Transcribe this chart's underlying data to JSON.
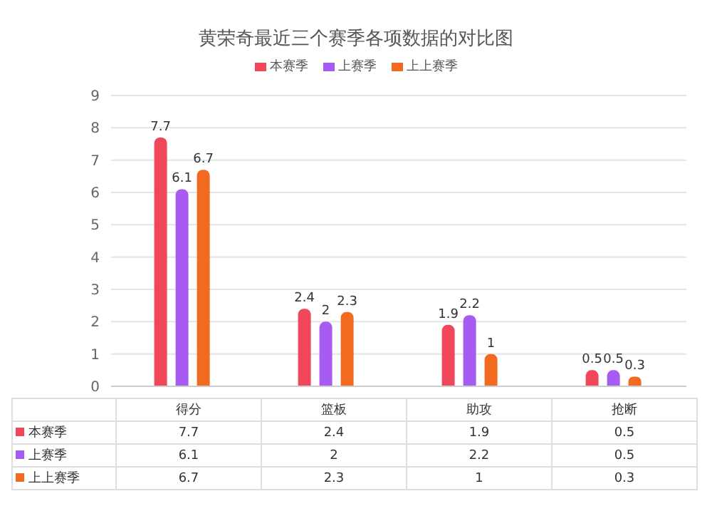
{
  "chart_data": {
    "type": "bar",
    "title": "黄荣奇最近三个赛季各项数据的对比图",
    "categories": [
      "得分",
      "篮板",
      "助攻",
      "抢断"
    ],
    "series": [
      {
        "name": "本赛季",
        "color": "#f0475a",
        "values": [
          7.7,
          2.4,
          1.9,
          0.5
        ],
        "value_labels": [
          "7.7",
          "2.4",
          "1.9",
          "0.5"
        ]
      },
      {
        "name": "上赛季",
        "color": "#a65cf2",
        "values": [
          6.1,
          2,
          2.2,
          0.5
        ],
        "value_labels": [
          "6.1",
          "2",
          "2.2",
          "0.5"
        ]
      },
      {
        "name": "上上赛季",
        "color": "#f26a1f",
        "values": [
          6.7,
          2.3,
          1,
          0.3
        ],
        "value_labels": [
          "6.7",
          "2.3",
          "1",
          "0.3"
        ]
      }
    ],
    "ylim": [
      0,
      9
    ],
    "yticks": [
      0,
      1,
      2,
      3,
      4,
      5,
      6,
      7,
      8,
      9
    ],
    "grid": "y",
    "legend": "top"
  }
}
